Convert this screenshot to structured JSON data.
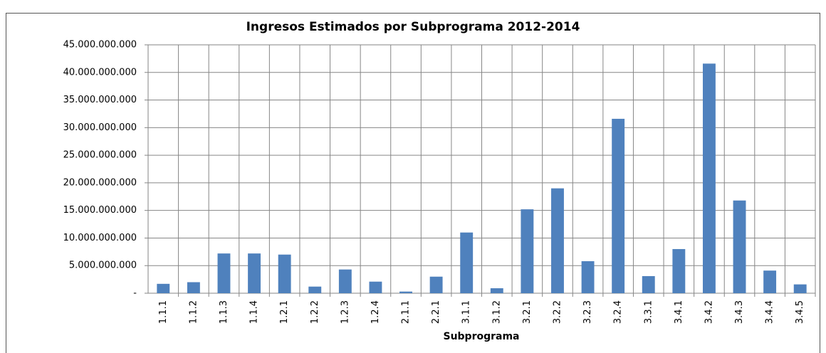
{
  "chart_data": {
    "type": "bar",
    "title": "Ingresos Estimados por Subprograma 2012-2014",
    "x_label": "Subprograma",
    "categories": [
      "1.1.1",
      "1.1.2",
      "1.1.3",
      "1.1.4",
      "1.2.1",
      "1.2.2",
      "1.2.3",
      "1.2.4",
      "2.1.1",
      "2.2.1",
      "3.1.1",
      "3.1.2",
      "3.2.1",
      "3.2.2",
      "3.2.3",
      "3.2.4",
      "3.3.1",
      "3.4.1",
      "3.4.2",
      "3.4.3",
      "3.4.4",
      "3.4.5"
    ],
    "values": [
      1700000000,
      2000000000,
      7200000000,
      7200000000,
      7000000000,
      1200000000,
      4300000000,
      2100000000,
      300000000,
      3000000000,
      11000000000,
      900000000,
      15200000000,
      19000000000,
      5800000000,
      31600000000,
      3100000000,
      8000000000,
      41600000000,
      16800000000,
      4100000000,
      1600000000
    ],
    "color": "#4f81bd",
    "ylim": [
      0,
      45000000000
    ],
    "yticks": [
      {
        "value": 0,
        "label": "-"
      },
      {
        "value": 5000000000,
        "label": "5.000.000.000"
      },
      {
        "value": 10000000000,
        "label": "10.000.000.000"
      },
      {
        "value": 15000000000,
        "label": "15.000.000.000"
      },
      {
        "value": 20000000000,
        "label": "20.000.000.000"
      },
      {
        "value": 25000000000,
        "label": "25.000.000.000"
      },
      {
        "value": 30000000000,
        "label": "30.000.000.000"
      },
      {
        "value": 35000000000,
        "label": "35.000.000.000"
      },
      {
        "value": 40000000000,
        "label": "40.000.000.000"
      },
      {
        "value": 45000000000,
        "label": "45.000.000.000"
      }
    ],
    "grid": true
  }
}
